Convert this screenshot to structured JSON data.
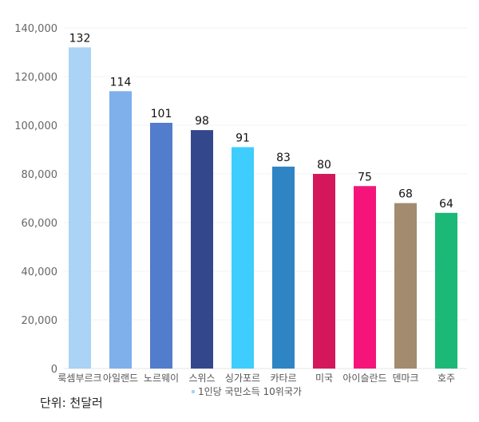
{
  "chart_data": {
    "type": "bar",
    "title": "",
    "xlabel": "",
    "ylabel": "",
    "ylim": [
      0,
      140000
    ],
    "yticks": [
      0,
      20000,
      40000,
      60000,
      80000,
      100000,
      120000,
      140000
    ],
    "ytick_labels": [
      "0",
      "20,000",
      "40,000",
      "60,000",
      "80,000",
      "100,000",
      "120,000",
      "140,000"
    ],
    "grid": true,
    "categories": [
      "룩셈부르크",
      "아일랜드",
      "노르웨이",
      "스위스",
      "싱가포르",
      "카타르",
      "미국",
      "아이슬란드",
      "덴마크",
      "호주"
    ],
    "values": [
      132000,
      114000,
      101000,
      98000,
      91000,
      83000,
      80000,
      75000,
      68000,
      64000
    ],
    "data_labels": [
      "132",
      "114",
      "101",
      "98",
      "91",
      "83",
      "80",
      "75",
      "68",
      "64"
    ],
    "colors": [
      "#aad3f5",
      "#7fb0ec",
      "#527ccc",
      "#33478c",
      "#3ecdfd",
      "#2f85c4",
      "#d3175a",
      "#f5157a",
      "#a38b6f",
      "#1bb877"
    ],
    "legend": {
      "label": "1인당 국민소득 10위국가",
      "placement": "bottom",
      "color": "#aad3f5"
    },
    "unit_note": "단위: 천달러"
  }
}
